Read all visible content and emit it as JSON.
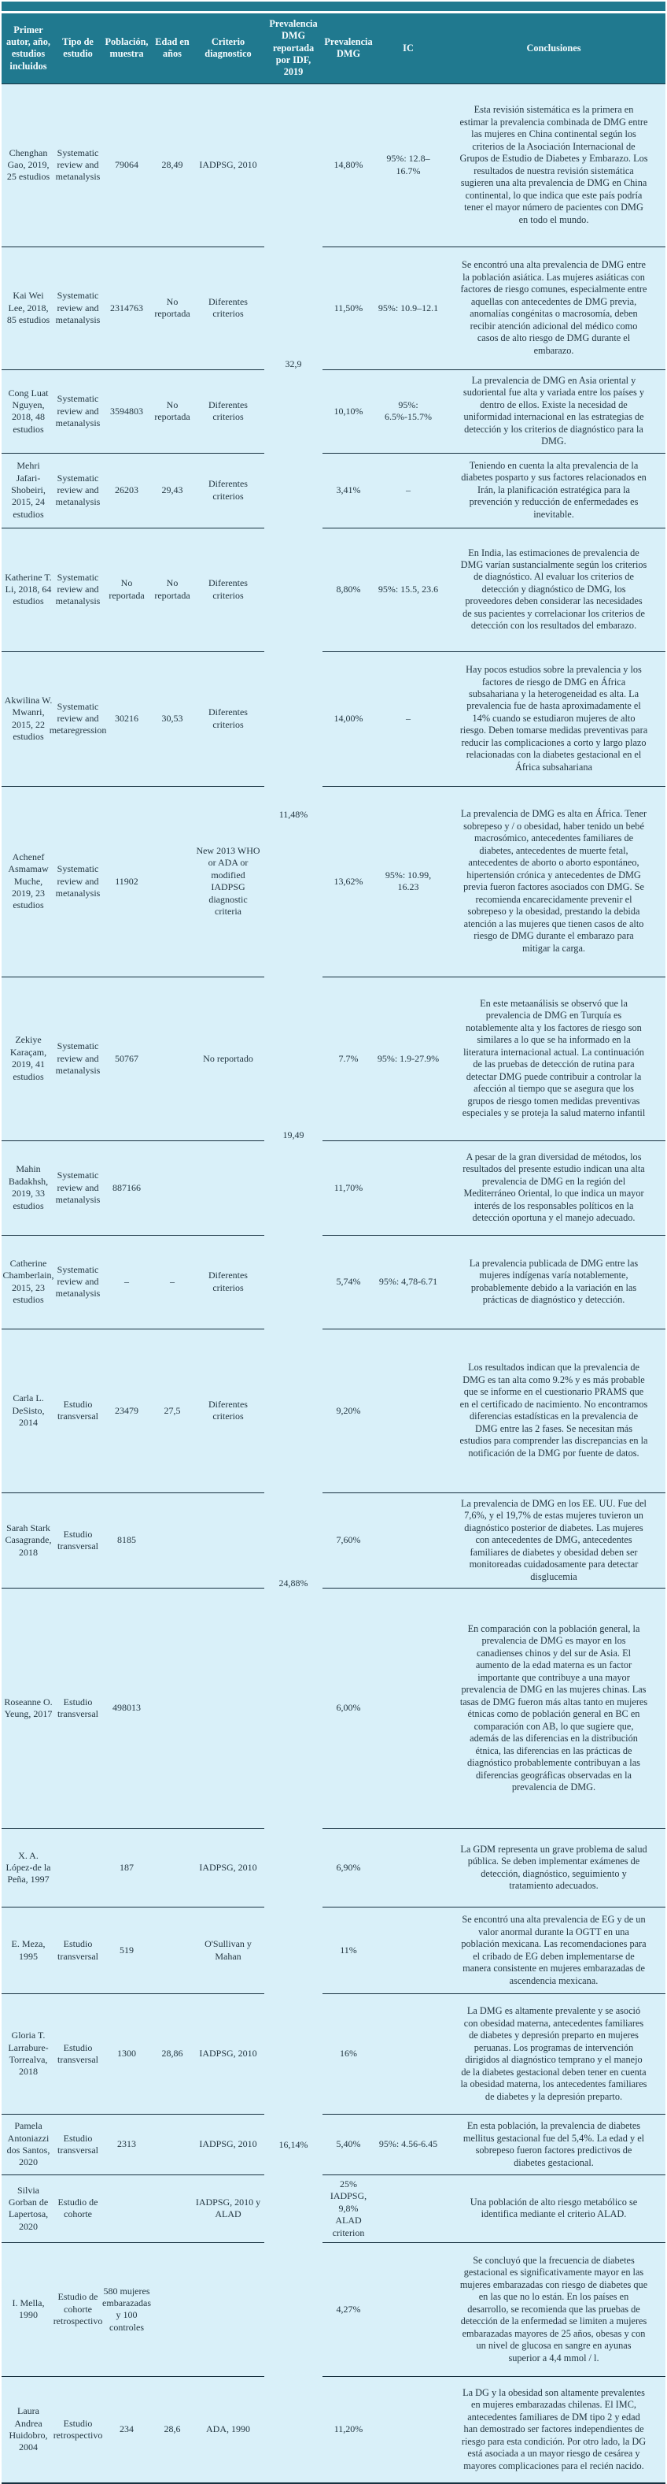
{
  "colors": {
    "header_bg": "#20798f",
    "row_bg": "#d9f0f9",
    "border": "#16303f",
    "header_text": "#ffffff",
    "body_text": "#243742"
  },
  "table": {
    "header": [
      "Primer autor, año, estudios incluidos",
      "Tipo de estudio",
      "Población, muestra",
      "Edad en años",
      "Criterio diagnostico",
      "Prevalencia DMG reportada por IDF, 2019",
      "Prevalencia DMG",
      "IC",
      "Conclusiones"
    ],
    "rows": [
      {
        "author": "Chenghan Gao, 2019, 25 estudios",
        "tipo": "Systematic review and metanalysis",
        "poblacion": "79064",
        "edad": "28,49",
        "criterio": "IADPSG, 2010",
        "idf": "",
        "prevalencia": "14,80%",
        "ic": "95%: 12.8–16.7%",
        "conclusiones": "Esta revisión sistemática es la primera en estimar la prevalencia combinada de DMG entre las mujeres en China continental según los criterios de la Asociación Internacional de Grupos de Estudio de Diabetes y Embarazo. Los resultados de nuestra revisión sistemática sugieren una alta prevalencia de DMG en China continental, lo que indica que este país podría tener el mayor número de pacientes con DMG en todo el mundo."
      },
      {
        "author": "Kai Wei Lee, 2018, 85 estudios",
        "tipo": "Systematic review and metanalysis",
        "poblacion": "2314763",
        "edad": "No reportada",
        "criterio": "Diferentes criterios",
        "idf": "32,9",
        "idf_align": "bottom",
        "prevalencia": "11,50%",
        "ic": "95%: 10.9–12.1",
        "conclusiones": "Se encontró una alta prevalencia de DMG entre la población asiática. Las mujeres asiáticas con factores de riesgo comunes, especialmente entre aquellas con antecedentes de DMG previa, anomalías congénitas o macrosomía, deben recibir atención adicional del médico como casos de alto riesgo de DMG durante el embarazo."
      },
      {
        "author": "Cong Luat Nguyen, 2018, 48 estudios",
        "tipo": "Systematic review and metanalysis",
        "poblacion": "3594803",
        "edad": "No reportada",
        "criterio": "Diferentes criterios",
        "idf": "",
        "prevalencia": "10,10%",
        "ic": "95%: 6.5%-15.7%",
        "conclusiones": "La prevalencia de DMG en Asia oriental y sudoriental fue alta y variada entre los países y dentro de ellos. Existe la necesidad de uniformidad internacional en las estrategias de detección y los criterios de diagnóstico para la DMG."
      },
      {
        "author": "Mehri Jafari-Shobeiri, 2015, 24 estudios",
        "tipo": "Systematic review and metanalysis",
        "poblacion": "26203",
        "edad": "29,43",
        "criterio": "Diferentes criterios",
        "idf": "",
        "prevalencia": "3,41%",
        "ic": "–",
        "conclusiones": "Teniendo en cuenta la alta prevalencia de la diabetes posparto y sus factores relacionados en Irán, la planificación estratégica para la prevención y reducción de enfermedades es inevitable."
      },
      {
        "author": "Katherine T. Li, 2018, 64 estudios",
        "tipo": "Systematic review and metanalysis",
        "poblacion": "No reportada",
        "edad": "No reportada",
        "criterio": "Diferentes criterios",
        "idf": "",
        "prevalencia": "8,80%",
        "ic": "95%: 15.5, 23.6",
        "conclusiones": "En India, las estimaciones de prevalencia de DMG varían sustancialmente según los criterios de diagnóstico. Al evaluar los criterios de detección y diagnóstico de DMG, los proveedores deben considerar las necesidades de sus pacientes y correlacionar los criterios de detección con los resultados del embarazo."
      },
      {
        "author": "Akwilina W. Mwanri, 2015, 22 estudios",
        "tipo": "Systematic review and metaregression",
        "poblacion": "30216",
        "edad": "30,53",
        "criterio": "Diferentes criterios",
        "idf": "",
        "prevalencia": "14,00%",
        "ic": "–",
        "conclusiones": "Hay pocos estudios sobre la prevalencia y los factores de riesgo de DMG en África subsahariana y la heterogeneidad es alta. La prevalencia fue de hasta aproximadamente el 14% cuando se estudiaron mujeres de alto riesgo. Deben tomarse medidas preventivas para reducir las complicaciones a corto y largo plazo relacionadas con la diabetes gestacional en el África subsahariana"
      },
      {
        "author": "Achenef Asmamaw Muche, 2019, 23 estudios",
        "tipo": "Systematic review and metanalysis",
        "poblacion": "11902",
        "edad": "",
        "criterio": "New 2013 WHO or ADA or modified IADPSG diagnostic criteria",
        "idf": "11,48%",
        "idf_align": "top",
        "prevalencia": "13,62%",
        "ic": "95%: 10.99, 16.23",
        "conclusiones": "La prevalencia de DMG es alta en África. Tener sobrepeso y / o obesidad, haber tenido un bebé macrosómico, antecedentes familiares de diabetes, antecedentes de muerte fetal, antecedentes de aborto o aborto espontáneo, hipertensión crónica y antecedentes de DMG previa fueron factores asociados con DMG. Se recomienda encarecidamente prevenir el sobrepeso y la obesidad, prestando la debida atención a las mujeres que tienen casos de alto riesgo de DMG durante el embarazo para mitigar la carga."
      },
      {
        "author": "Zekiye Karaçam, 2019, 41 estudios",
        "tipo": "Systematic review and metanalysis",
        "poblacion": "50767",
        "edad": "",
        "criterio": "No reportado",
        "idf": "19,49",
        "idf_align": "bottom",
        "prevalencia": "7.7%",
        "ic": "95%: 1.9-27.9%",
        "conclusiones": "En este metaanálisis se observó que la prevalencia de DMG en Turquía es notablemente alta y los factores de riesgo son similares a lo que se ha informado en la literatura internacional actual. La continuación de las pruebas de detección de rutina para detectar DMG puede contribuir a controlar la afección al tiempo que se asegura que los grupos de riesgo tomen medidas preventivas especiales y se proteja la salud materno infantil"
      },
      {
        "author": "Mahin Badakhsh, 2019, 33 estudios",
        "tipo": "Systematic review and metanalysis",
        "poblacion": "887166",
        "edad": "",
        "criterio": "",
        "idf": "",
        "prevalencia": "11,70%",
        "ic": "",
        "conclusiones": "A pesar de la gran diversidad de métodos, los resultados del presente estudio indican una alta prevalencia de DMG en la región del Mediterráneo Oriental, lo que indica un mayor interés de los responsables políticos en la detección oportuna y el manejo adecuado."
      },
      {
        "author": "Catherine Chamberlain, 2015, 23 estudios",
        "tipo": "Systematic review and metanalysis",
        "poblacion": "–",
        "edad": "–",
        "criterio": "Diferentes criterios",
        "idf": "",
        "prevalencia": "5,74%",
        "ic": "95%: 4,78-6.71",
        "conclusiones": "La prevalencia publicada de DMG entre las mujeres indígenas varía notablemente, probablemente debido a la variación en las prácticas de diagnóstico y detección."
      },
      {
        "author": "Carla L. DeSisto, 2014",
        "tipo": "Estudio transversal",
        "poblacion": "23479",
        "edad": "27,5",
        "criterio": "Diferentes criterios",
        "idf": "",
        "prevalencia": "9,20%",
        "ic": "",
        "conclusiones": "Los resultados indican que la prevalencia de DMG es tan alta como 9.2% y es más probable que se informe en el cuestionario PRAMS que en el certificado de nacimiento. No encontramos diferencias estadísticas en la prevalencia de DMG entre las 2 fases. Se necesitan más estudios para comprender las discrepancias en la notificación de la DMG por fuente de datos."
      },
      {
        "author": "Sarah Stark Casagrande, 2018",
        "tipo": "Estudio transversal",
        "poblacion": "8185",
        "edad": "",
        "criterio": "",
        "idf": "24,88%",
        "idf_align": "bottom",
        "prevalencia": "7,60%",
        "ic": "",
        "conclusiones": "La prevalencia de DMG en los EE. UU. Fue del 7,6%, y el 19,7% de estas mujeres tuvieron un diagnóstico posterior de diabetes. Las mujeres con antecedentes de DMG, antecedentes familiares de diabetes y obesidad deben ser monitoreadas cuidadosamente para detectar disglucemia"
      },
      {
        "author": "Roseanne O. Yeung, 2017",
        "tipo": "Estudio transversal",
        "poblacion": "498013",
        "edad": "",
        "criterio": "",
        "idf": "",
        "prevalencia": "6,00%",
        "ic": "",
        "conclusiones": "En comparación con la población general, la prevalencia de DMG es mayor en los canadienses chinos y del sur de Asia. El aumento de la edad materna es un factor importante que contribuye a una mayor prevalencia de DMG en las mujeres chinas. Las tasas de DMG fueron más altas tanto en mujeres étnicas como de población general en BC en comparación con AB, lo que sugiere que, además de las diferencias en la distribución étnica, las diferencias en las prácticas de diagnóstico probablemente contribuyan a las diferencias geográficas observadas en la prevalencia de DMG."
      },
      {
        "author": "X. A. López-de la Peña, 1997",
        "tipo": "",
        "poblacion": "187",
        "edad": "",
        "criterio": "IADPSG, 2010",
        "idf": "",
        "prevalencia": "6,90%",
        "ic": "",
        "conclusiones": "La GDM representa un grave problema de salud pública. Se deben implementar exámenes de detección, diagnóstico, seguimiento y tratamiento adecuados."
      },
      {
        "author": "E. Meza, 1995",
        "tipo": "Estudio transversal",
        "poblacion": "519",
        "edad": "",
        "criterio": "O'Sullivan y Mahan",
        "idf": "",
        "prevalencia": "11%",
        "ic": "",
        "conclusiones": "Se encontró una alta prevalencia de EG y de un valor anormal durante la OGTT en una población mexicana. Las recomendaciones para el cribado de EG deben implementarse de manera consistente en mujeres embarazadas de ascendencia mexicana."
      },
      {
        "author": "Gloria T. Larrabure-Torrealva, 2018",
        "tipo": "Estudio transversal",
        "poblacion": "1300",
        "edad": "28,86",
        "criterio": "IADPSG, 2010",
        "idf": "",
        "prevalencia": "16%",
        "ic": "",
        "conclusiones": "La DMG es altamente prevalente y se asoció con obesidad materna, antecedentes familiares de diabetes y depresión preparto en mujeres peruanas. Los programas de intervención dirigidos al diagnóstico temprano y el manejo de la diabetes gestacional deben tener en cuenta la obesidad materna, los antecedentes familiares de diabetes y la depresión preparto."
      },
      {
        "author": "Pamela Antoniazzi dos Santos, 2020",
        "tipo": "Estudio transversal",
        "poblacion": "2313",
        "edad": "",
        "criterio": "IADPSG, 2010",
        "idf": "16,14%",
        "idf_align": "center",
        "prevalencia": "5,40%",
        "ic": "95%: 4.56-6.45",
        "conclusiones": "En esta población, la prevalencia de diabetes mellitus gestacional fue del 5,4%. La edad y el sobrepeso fueron factores predictivos de diabetes gestacional."
      },
      {
        "author": "Silvia Gorban de Lapertosa, 2020",
        "tipo": "Estudio de cohorte",
        "poblacion": "",
        "edad": "",
        "criterio": "IADPSG, 2010 y ALAD",
        "idf": "",
        "prevalencia": "25% IADPSG, 9,8% ALAD criterion",
        "ic": "",
        "conclusiones": "Una población de alto riesgo metabólico se identifica mediante el criterio ALAD."
      },
      {
        "author": "I. Mella, 1990",
        "tipo": "Estudio de cohorte retrospectivo",
        "poblacion": "580 mujeres embarazadas y 100 controles",
        "edad": "",
        "criterio": "",
        "idf": "",
        "prevalencia": "4,27%",
        "ic": "",
        "conclusiones": "Se concluyó que la frecuencia de diabetes gestacional es significativamente mayor en las mujeres embarazadas con riesgo de diabetes que en las que no lo están. En los países en desarrollo, se recomienda que las pruebas de detección de la enfermedad se limiten a mujeres embarazadas mayores de 25 años, obesas y con un nivel de glucosa en sangre en ayunas superior a 4,4 mmol / l."
      },
      {
        "author": "Laura Andrea Huidobro, 2004",
        "tipo": "Estudio retrospectivo",
        "poblacion": "234",
        "edad": "28,6",
        "criterio": "ADA, 1990",
        "idf": "",
        "prevalencia": "11,20%",
        "ic": "",
        "conclusiones": "La DG y la obesidad son altamente prevalentes en mujeres embarazadas chilenas. El IMC, antecedentes familiares de DM tipo 2 y edad han demostrado ser factores independientes de riesgo para esta condición. Por otro lado, la DG está asociada a un mayor riesgo de cesárea y mayores complicaciones para el recién nacido."
      }
    ]
  }
}
